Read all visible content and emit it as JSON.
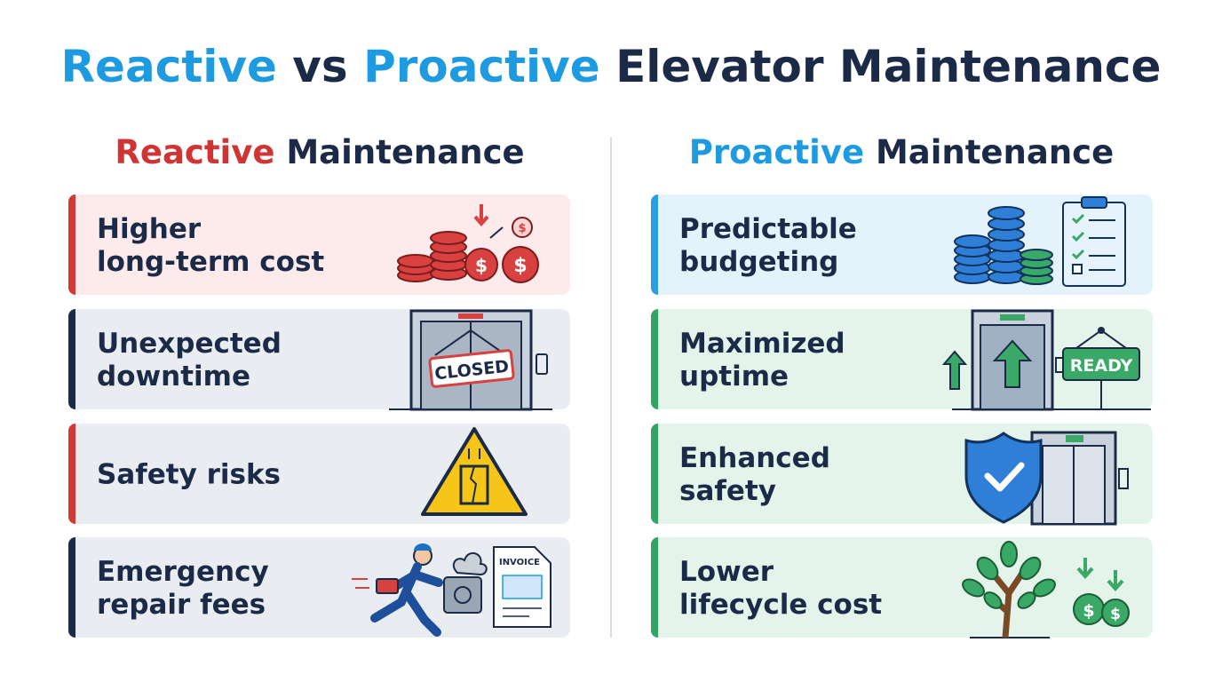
{
  "title": {
    "parts": [
      "Reactive",
      "vs",
      "Proactive",
      "Elevator Maintenance"
    ]
  },
  "columns": [
    {
      "heading": [
        "Reactive",
        "Maintenance"
      ],
      "items": [
        {
          "lines": [
            "Higher",
            "long-term cost"
          ]
        },
        {
          "lines": [
            "Unexpected",
            "downtime"
          ]
        },
        {
          "lines": [
            "Safety risks"
          ]
        },
        {
          "lines": [
            "Emergency",
            "repair fees"
          ]
        }
      ]
    },
    {
      "heading": [
        "Proactive",
        "Maintenance"
      ],
      "items": [
        {
          "lines": [
            "Predictable",
            "budgeting"
          ]
        },
        {
          "lines": [
            "Maximized",
            "uptime"
          ]
        },
        {
          "lines": [
            "Enhanced",
            "safety"
          ]
        },
        {
          "lines": [
            "Lower",
            "lifecycle cost"
          ]
        }
      ]
    }
  ],
  "icon_labels": {
    "closed": "CLOSED",
    "ready": "READY",
    "invoice": "INVOICE",
    "dollar": "$"
  }
}
